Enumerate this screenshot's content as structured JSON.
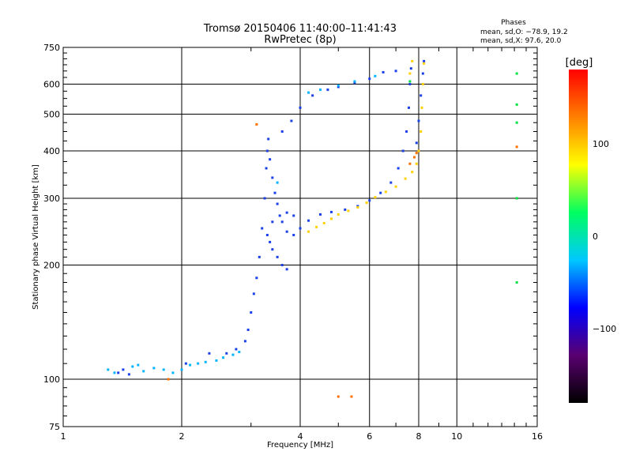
{
  "chart_data": {
    "type": "scatter",
    "title": "Tromsø 20150406 11:40:00–11:41:43",
    "subtitle": "RwPretec (8p)",
    "xlabel": "Frequency [MHz]",
    "ylabel": "Stationary phase Virtual Height [km]",
    "x_scale": "log",
    "y_scale": "log",
    "xlim": [
      1,
      16
    ],
    "ylim": [
      75,
      750
    ],
    "grid": true,
    "x_ticks": [
      1,
      2,
      4,
      6,
      8,
      10,
      16
    ],
    "x_tick_labels": [
      "1",
      "2",
      "4",
      "6",
      "8",
      "10",
      "16"
    ],
    "y_ticks": [
      75,
      100,
      200,
      300,
      400,
      500,
      600,
      750
    ],
    "y_tick_labels": [
      "75",
      "100",
      "200",
      "300",
      "400",
      "500",
      "600",
      "750"
    ],
    "phase_stats": {
      "title": "Phases",
      "line_o": "mean, sd,O: −78.9, 19.2",
      "line_x": "mean, sd,X:  97.6, 20.0"
    },
    "colorbar": {
      "label": "[deg]",
      "min": -180,
      "max": 180,
      "ticks": [
        -100,
        0,
        100
      ],
      "tick_labels": [
        "−100",
        "0",
        "100"
      ],
      "stops": [
        "#000000",
        "#5a0070",
        "#0000ff",
        "#00c8ff",
        "#00ff60",
        "#ffff00",
        "#ff8000",
        "#ff0000"
      ]
    },
    "series": [
      {
        "phase_deg": -90,
        "color": "#1a40e8",
        "points": [
          [
            1.38,
            104
          ],
          [
            1.42,
            106
          ],
          [
            1.47,
            103
          ],
          [
            2.05,
            110
          ],
          [
            2.35,
            117
          ],
          [
            2.6,
            117
          ],
          [
            2.75,
            120
          ],
          [
            2.9,
            126
          ],
          [
            2.95,
            135
          ],
          [
            3.0,
            150
          ],
          [
            3.05,
            168
          ],
          [
            3.1,
            185
          ],
          [
            3.15,
            210
          ],
          [
            3.2,
            250
          ],
          [
            3.25,
            300
          ],
          [
            3.28,
            360
          ],
          [
            3.3,
            400
          ],
          [
            3.32,
            430
          ],
          [
            3.35,
            380
          ],
          [
            3.4,
            340
          ],
          [
            3.45,
            310
          ],
          [
            3.5,
            290
          ],
          [
            3.6,
            260
          ],
          [
            3.7,
            245
          ],
          [
            3.85,
            240
          ],
          [
            4.0,
            250
          ],
          [
            4.2,
            262
          ],
          [
            4.5,
            272
          ],
          [
            4.8,
            276
          ],
          [
            5.2,
            280
          ],
          [
            5.6,
            286
          ],
          [
            6.0,
            296
          ],
          [
            6.4,
            310
          ],
          [
            6.8,
            330
          ],
          [
            7.1,
            360
          ],
          [
            7.3,
            400
          ],
          [
            7.45,
            450
          ],
          [
            7.55,
            520
          ],
          [
            7.6,
            600
          ],
          [
            7.65,
            660
          ],
          [
            3.6,
            450
          ],
          [
            3.8,
            480
          ],
          [
            4.0,
            520
          ],
          [
            4.3,
            560
          ],
          [
            4.7,
            580
          ],
          [
            5.0,
            590
          ],
          [
            5.5,
            605
          ],
          [
            6.0,
            620
          ],
          [
            6.5,
            645
          ],
          [
            7.0,
            650
          ],
          [
            3.3,
            240
          ],
          [
            3.35,
            230
          ],
          [
            3.4,
            220
          ],
          [
            3.5,
            210
          ],
          [
            3.6,
            200
          ],
          [
            3.7,
            195
          ],
          [
            3.4,
            260
          ],
          [
            3.55,
            270
          ],
          [
            3.7,
            275
          ],
          [
            3.85,
            270
          ],
          [
            7.9,
            420
          ],
          [
            8.0,
            480
          ],
          [
            8.1,
            560
          ],
          [
            8.2,
            640
          ],
          [
            8.25,
            690
          ]
        ]
      },
      {
        "phase_deg": -70,
        "color": "#00b4ff",
        "points": [
          [
            1.3,
            106
          ],
          [
            1.35,
            104
          ],
          [
            1.5,
            108
          ],
          [
            1.55,
            109
          ],
          [
            1.6,
            105
          ],
          [
            1.7,
            107
          ],
          [
            1.8,
            106
          ],
          [
            1.9,
            104
          ],
          [
            2.0,
            106
          ],
          [
            2.1,
            109
          ],
          [
            2.2,
            110
          ],
          [
            2.3,
            111
          ],
          [
            2.45,
            112
          ],
          [
            2.55,
            114
          ],
          [
            2.7,
            116
          ],
          [
            2.8,
            118
          ],
          [
            4.2,
            570
          ],
          [
            4.5,
            580
          ],
          [
            5.0,
            595
          ],
          [
            5.5,
            610
          ],
          [
            6.2,
            630
          ],
          [
            3.5,
            330
          ]
        ]
      },
      {
        "phase_deg": 100,
        "color": "#ffd000",
        "points": [
          [
            4.2,
            245
          ],
          [
            4.4,
            252
          ],
          [
            4.6,
            258
          ],
          [
            4.8,
            265
          ],
          [
            5.0,
            272
          ],
          [
            5.3,
            278
          ],
          [
            5.6,
            284
          ],
          [
            5.9,
            292
          ],
          [
            6.2,
            302
          ],
          [
            6.6,
            312
          ],
          [
            7.0,
            322
          ],
          [
            7.4,
            338
          ],
          [
            7.7,
            352
          ],
          [
            7.9,
            370
          ],
          [
            8.0,
            400
          ],
          [
            8.1,
            450
          ],
          [
            8.15,
            520
          ],
          [
            8.2,
            600
          ],
          [
            8.25,
            680
          ],
          [
            7.6,
            640
          ],
          [
            7.7,
            690
          ]
        ]
      },
      {
        "phase_deg": 140,
        "color": "#ff7000",
        "points": [
          [
            7.6,
            370
          ],
          [
            7.8,
            385
          ],
          [
            7.9,
            395
          ],
          [
            5.0,
            90
          ],
          [
            5.4,
            90
          ],
          [
            3.1,
            470
          ],
          [
            1.85,
            100
          ],
          [
            14.2,
            410
          ]
        ]
      },
      {
        "phase_deg": 0,
        "color": "#00e040",
        "points": [
          [
            14.2,
            640
          ],
          [
            14.2,
            530
          ],
          [
            14.2,
            475
          ],
          [
            14.2,
            300
          ],
          [
            14.2,
            180
          ],
          [
            7.6,
            610
          ]
        ]
      }
    ]
  }
}
